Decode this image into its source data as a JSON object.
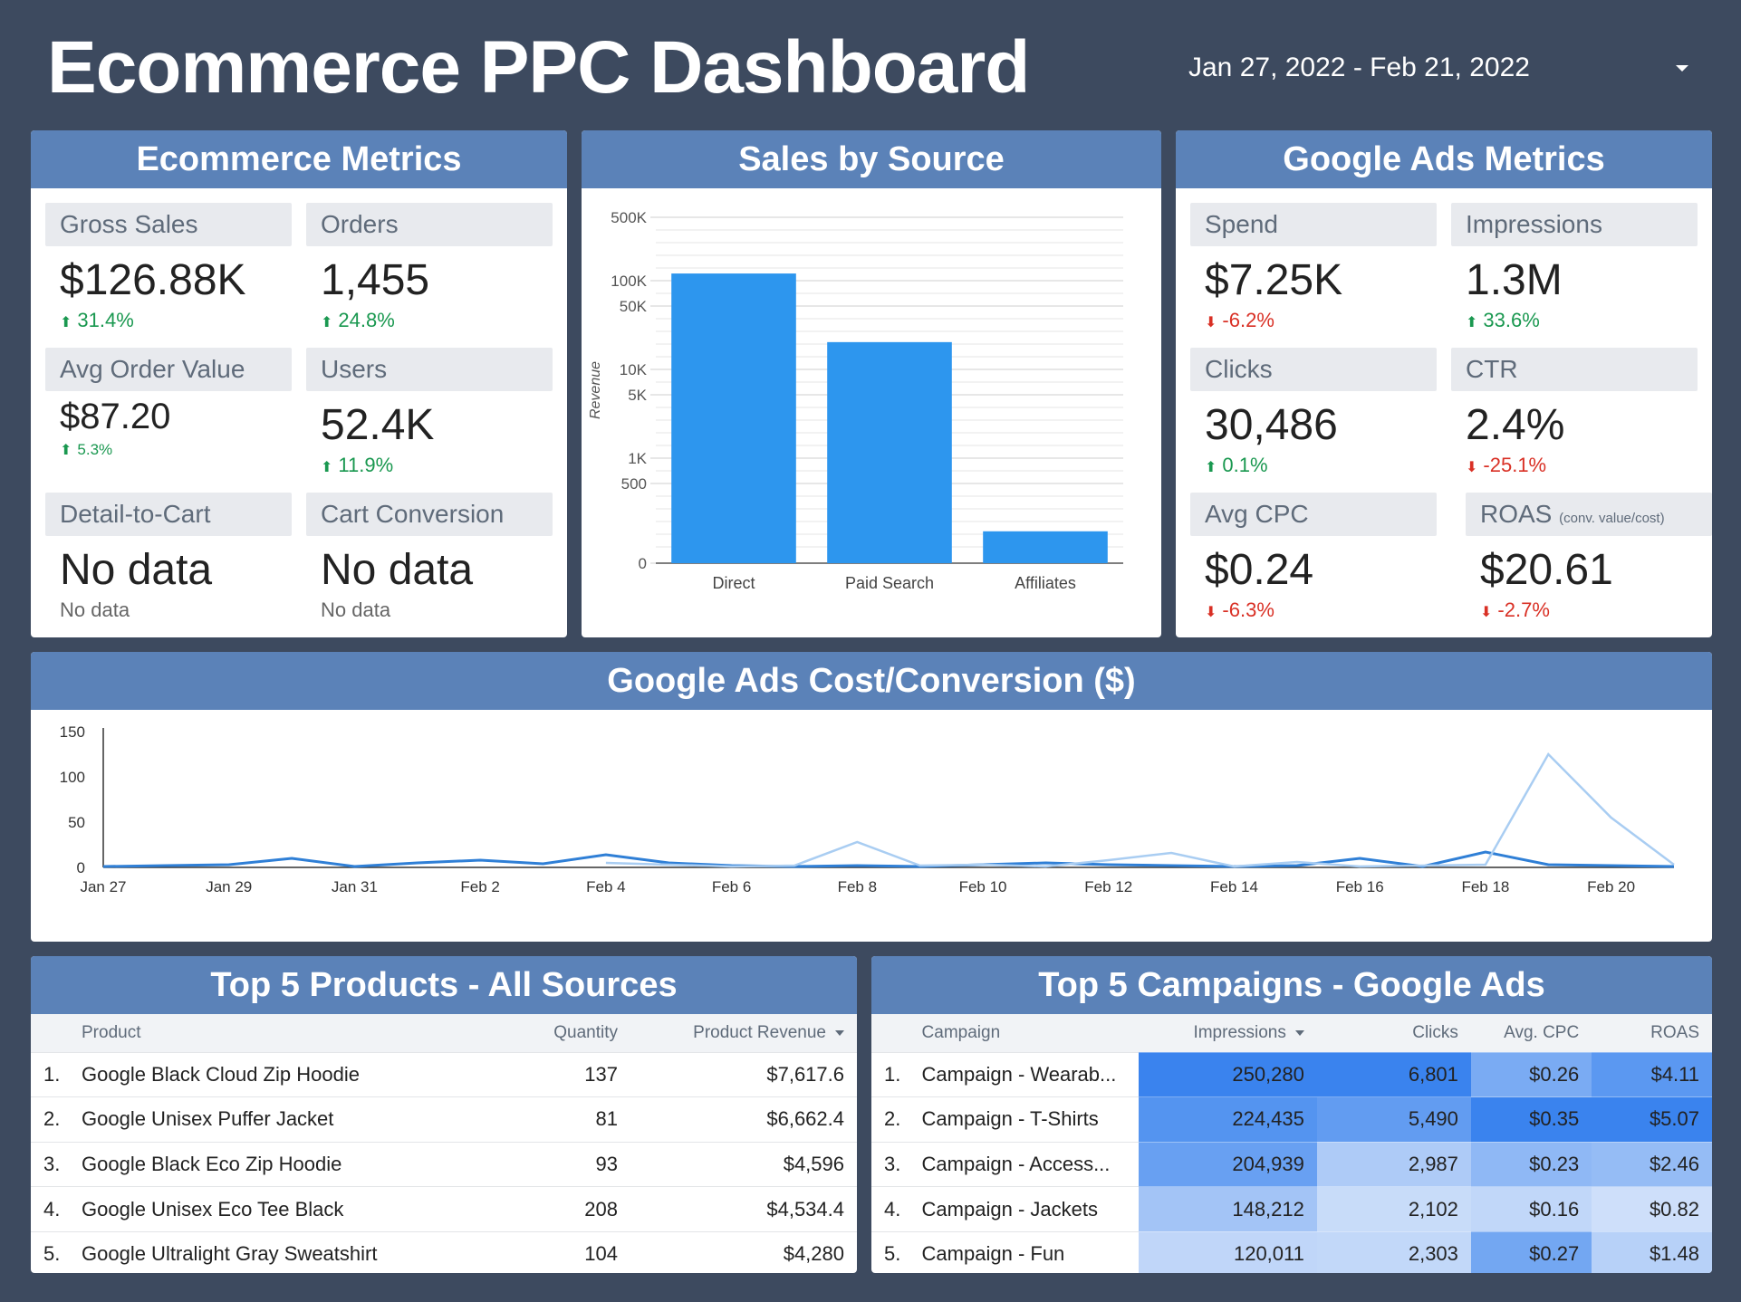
{
  "header": {
    "title": "Ecommerce PPC Dashboard",
    "date_range": "Jan 27, 2022 - Feb 21, 2022"
  },
  "ecommerce": {
    "title": "Ecommerce Metrics",
    "gross_sales": {
      "label": "Gross Sales",
      "value": "$126.88K",
      "delta": "31.4%"
    },
    "orders": {
      "label": "Orders",
      "value": "1,455",
      "delta": "24.8%"
    },
    "aov": {
      "label": "Avg Order Value",
      "value": "$87.20",
      "delta": "5.3%"
    },
    "users": {
      "label": "Users",
      "value": "52.4K",
      "delta": "11.9%"
    },
    "detail_to_cart": {
      "label": "Detail-to-Cart",
      "value": "No data",
      "delta": "No data"
    },
    "cart_conversion": {
      "label": "Cart Conversion",
      "value": "No data",
      "delta": "No data"
    }
  },
  "ads": {
    "title": "Google Ads Metrics",
    "spend": {
      "label": "Spend",
      "value": "$7.25K",
      "delta": "-6.2%"
    },
    "impressions": {
      "label": "Impressions",
      "value": "1.3M",
      "delta": "33.6%"
    },
    "clicks": {
      "label": "Clicks",
      "value": "30,486",
      "delta": "0.1%"
    },
    "ctr": {
      "label": "CTR",
      "value": "2.4%",
      "delta": "-25.1%"
    },
    "avg_cpc": {
      "label": "Avg CPC",
      "value": "$0.24",
      "delta": "-6.3%"
    },
    "roas": {
      "label": "ROAS",
      "sublabel": "(conv. value/cost)",
      "value": "$20.61",
      "delta": "-2.7%"
    }
  },
  "colors": {
    "accent": "#5b82b8",
    "bar": "#2d96ee",
    "up": "#1a9850",
    "down": "#d93025",
    "line_dark": "#2f7fd6",
    "line_light": "#a9cdf2"
  },
  "chart_data": [
    {
      "type": "bar",
      "title": "Sales by Source",
      "ylabel": "Revenue",
      "xlabel": "",
      "scale": "log",
      "categories": [
        "Direct",
        "Paid Search",
        "Affiliates"
      ],
      "values": [
        120000,
        20000,
        200
      ],
      "yticks": [
        "500K",
        "100K",
        "50K",
        "10K",
        "5K",
        "1K",
        "500",
        "0"
      ],
      "grid": true
    },
    {
      "type": "line",
      "title": "Google Ads  Cost/Conversion ($)",
      "xlabel": "",
      "ylabel": "",
      "ylim": [
        0,
        150
      ],
      "yticks": [
        "150",
        "100",
        "50",
        "0"
      ],
      "xtick_labels": [
        "Jan 27",
        "Jan 29",
        "Jan 31",
        "Feb 2",
        "Feb 4",
        "Feb 6",
        "Feb 8",
        "Feb 10",
        "Feb 12",
        "Feb 14",
        "Feb 16",
        "Feb 18",
        "Feb 20"
      ],
      "x": [
        "Jan 27",
        "Jan 28",
        "Jan 29",
        "Jan 30",
        "Jan 31",
        "Feb 1",
        "Feb 2",
        "Feb 3",
        "Feb 4",
        "Feb 5",
        "Feb 6",
        "Feb 7",
        "Feb 8",
        "Feb 9",
        "Feb 10",
        "Feb 11",
        "Feb 12",
        "Feb 13",
        "Feb 14",
        "Feb 15",
        "Feb 16",
        "Feb 17",
        "Feb 18",
        "Feb 19",
        "Feb 20",
        "Feb 21"
      ],
      "series": [
        {
          "values": [
            1,
            2,
            3,
            10,
            1,
            5,
            8,
            4,
            14,
            5,
            2,
            1,
            2,
            1,
            3,
            5,
            3,
            2,
            1,
            2,
            10,
            1,
            17,
            3,
            2,
            1
          ]
        },
        {
          "values": [
            null,
            null,
            null,
            null,
            null,
            null,
            null,
            null,
            5,
            3,
            1,
            2,
            28,
            2,
            3,
            1,
            8,
            16,
            1,
            6,
            1,
            2,
            3,
            125,
            55,
            3
          ]
        }
      ],
      "grid": false
    },
    {
      "type": "table",
      "title": "Top 5 Products - All Sources",
      "columns": [
        "Product",
        "Quantity",
        "Product Revenue"
      ],
      "rows": [
        {
          "idx": "1.",
          "product": "Google Black Cloud Zip Hoodie",
          "quantity": "137",
          "revenue": "$7,617.6"
        },
        {
          "idx": "2.",
          "product": "Google Unisex Puffer Jacket",
          "quantity": "81",
          "revenue": "$6,662.4"
        },
        {
          "idx": "3.",
          "product": "Google Black Eco Zip Hoodie",
          "quantity": "93",
          "revenue": "$4,596"
        },
        {
          "idx": "4.",
          "product": "Google Unisex Eco Tee Black",
          "quantity": "208",
          "revenue": "$4,534.4"
        },
        {
          "idx": "5.",
          "product": "Google Ultralight Gray Sweatshirt",
          "quantity": "104",
          "revenue": "$4,280"
        }
      ]
    },
    {
      "type": "table",
      "title": "Top 5 Campaigns - Google Ads",
      "columns": [
        "Campaign",
        "Impressions",
        "Clicks",
        "Avg. CPC",
        "ROAS"
      ],
      "rows": [
        {
          "idx": "1.",
          "campaign": "Campaign - Wearab...",
          "impressions": "250,280",
          "clicks": "6,801",
          "cpc": "$0.26",
          "roas": "$4.11"
        },
        {
          "idx": "2.",
          "campaign": "Campaign - T-Shirts",
          "impressions": "224,435",
          "clicks": "5,490",
          "cpc": "$0.35",
          "roas": "$5.07"
        },
        {
          "idx": "3.",
          "campaign": "Campaign - Access...",
          "impressions": "204,939",
          "clicks": "2,987",
          "cpc": "$0.23",
          "roas": "$2.46"
        },
        {
          "idx": "4.",
          "campaign": "Campaign - Jackets",
          "impressions": "148,212",
          "clicks": "2,102",
          "cpc": "$0.16",
          "roas": "$0.82"
        },
        {
          "idx": "5.",
          "campaign": "Campaign - Fun",
          "impressions": "120,011",
          "clicks": "2,303",
          "cpc": "$0.27",
          "roas": "$1.48"
        }
      ]
    }
  ]
}
